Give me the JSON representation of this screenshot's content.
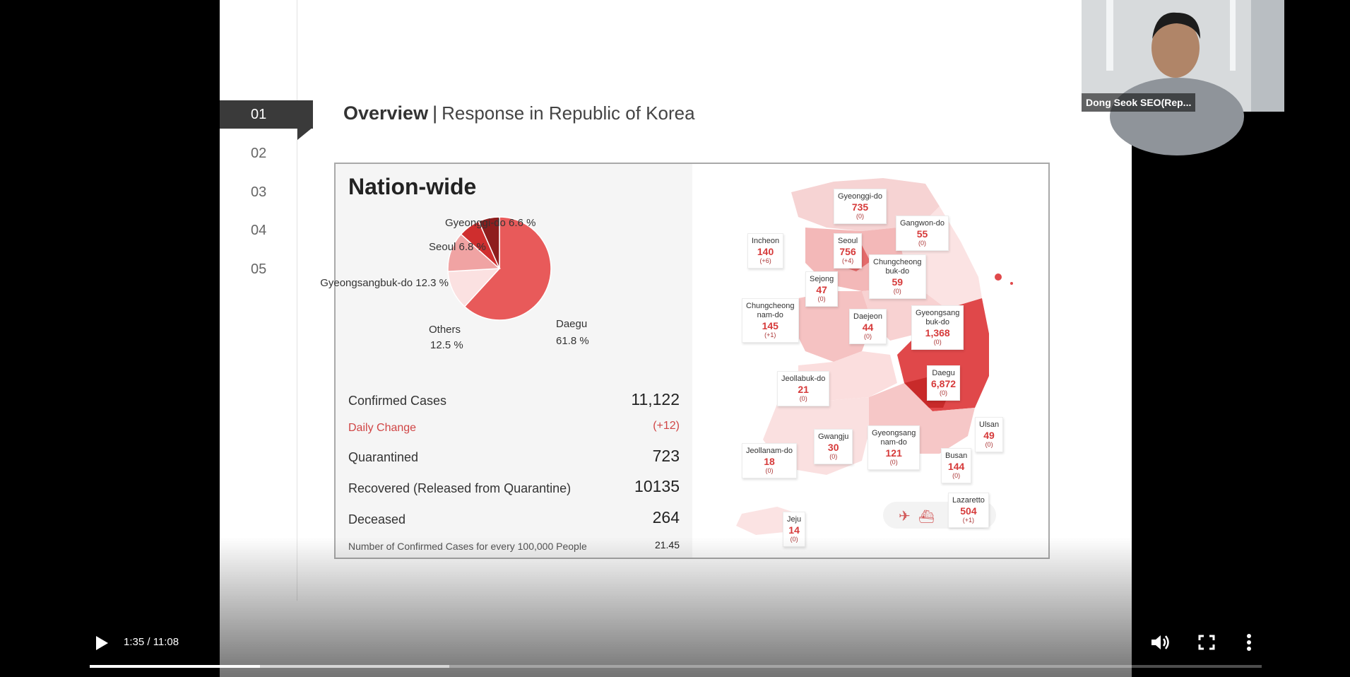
{
  "slide": {
    "nav_items": [
      "01",
      "02",
      "03",
      "04",
      "05"
    ],
    "active_nav": 0,
    "title_bold": "Overview",
    "title_separator": "|",
    "title_rest": "Response in Republic of Korea"
  },
  "nation": {
    "title": "Nation-wide",
    "pie_labels": {
      "gyeonggi": "Gyeonggi-do 6.6 %",
      "seoul": "Seoul 6.8 %",
      "gyeongbuk": "Gyeongsangbuk-do 12.3 %",
      "others_1": "Others",
      "others_2": "12.5 %",
      "daegu_1": "Daegu",
      "daegu_2": "61.8 %"
    },
    "stats": {
      "confirmed_label": "Confirmed Cases",
      "confirmed_value": "11,122",
      "daily_label": "Daily Change",
      "daily_value": "(+12)",
      "quarantined_label": "Quarantined",
      "quarantined_value": "723",
      "recovered_label": "Recovered (Released from Quarantine)",
      "recovered_value": "10135",
      "deceased_label": "Deceased",
      "deceased_value": "264",
      "per100k_label": "Number of Confirmed Cases for every 100,000 People",
      "per100k_value": "21.45"
    }
  },
  "chart_data": {
    "type": "pie",
    "categories": [
      "Daegu",
      "Gyeongsangbuk-do",
      "Others",
      "Seoul",
      "Gyeonggi-do"
    ],
    "values": [
      61.8,
      12.3,
      12.5,
      6.8,
      6.6
    ],
    "colors": [
      "#e85a5a",
      "#fbe1e1",
      "#f0a3a3",
      "#cf2e2e",
      "#8e1d1d"
    ]
  },
  "map": {
    "regions": [
      {
        "name": "Gyeonggi-do",
        "value": "735",
        "change": "(0)"
      },
      {
        "name": "Gangwon-do",
        "value": "55",
        "change": "(0)"
      },
      {
        "name": "Incheon",
        "value": "140",
        "change": "(+6)"
      },
      {
        "name": "Seoul",
        "value": "756",
        "change": "(+4)"
      },
      {
        "name": "Chungcheong\nbuk-do",
        "value": "59",
        "change": "(0)"
      },
      {
        "name": "Sejong",
        "value": "47",
        "change": "(0)"
      },
      {
        "name": "Chungcheong\nnam-do",
        "value": "145",
        "change": "(+1)"
      },
      {
        "name": "Daejeon",
        "value": "44",
        "change": "(0)"
      },
      {
        "name": "Gyeongsang\nbuk-do",
        "value": "1,368",
        "change": "(0)"
      },
      {
        "name": "Daegu",
        "value": "6,872",
        "change": "(0)"
      },
      {
        "name": "Jeollabuk-do",
        "value": "21",
        "change": "(0)"
      },
      {
        "name": "Ulsan",
        "value": "49",
        "change": "(0)"
      },
      {
        "name": "Gwangju",
        "value": "30",
        "change": "(0)"
      },
      {
        "name": "Gyeongsang\nnam-do",
        "value": "121",
        "change": "(0)"
      },
      {
        "name": "Jeollanam-do",
        "value": "18",
        "change": "(0)"
      },
      {
        "name": "Busan",
        "value": "144",
        "change": "(0)"
      },
      {
        "name": "Lazaretto",
        "value": "504",
        "change": "(+1)"
      },
      {
        "name": "Jeju",
        "value": "14",
        "change": "(0)"
      }
    ]
  },
  "player": {
    "time": "1:35 / 11:08",
    "progress_played": 0.145,
    "progress_buffered": 0.307
  },
  "webcam": {
    "name": "Dong Seok SEO(Rep..."
  }
}
